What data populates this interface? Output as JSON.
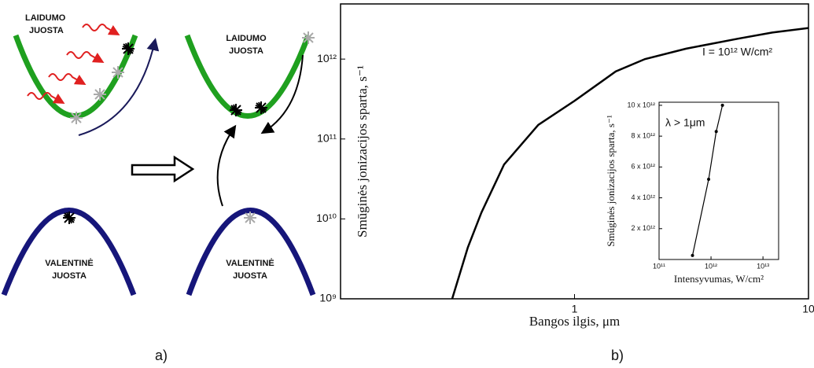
{
  "diagram": {
    "left_conduction": [
      "LAIDUMO",
      "JUOSTA"
    ],
    "right_conduction": [
      "LAIDUMO",
      "JUOSTA"
    ],
    "left_valence": [
      "VALENTINĖ",
      "JUOSTA"
    ],
    "right_valence": [
      "VALENTINĖ",
      "JUOSTA"
    ],
    "panels": [
      "a)",
      "b)"
    ]
  },
  "chart_data": [
    {
      "type": "line",
      "xlabel": "Bangos ilgis, μm",
      "ylabel": "Smūginės jonizacijos sparta, s⁻¹",
      "annotation": "I = 10¹² W/cm²",
      "xscale": "log",
      "yscale": "log",
      "color": "#000000",
      "x": [
        0.3,
        0.35,
        0.4,
        0.5,
        0.7,
        1,
        1.5,
        2,
        3,
        5,
        7,
        10
      ],
      "values": [
        1000000000,
        4400000000,
        12000000000,
        48000000000,
        150000000000,
        300000000000,
        700000000000,
        1000000000000,
        1350000000000,
        1800000000000,
        2150000000000,
        2450000000000
      ],
      "xlim": [
        0.1,
        10
      ],
      "ylim": [
        1000000000,
        4900000000000
      ],
      "xticks": [
        1,
        10
      ],
      "yticks": [
        {
          "value": 1000000000,
          "label": "10⁹"
        },
        {
          "value": 10000000000,
          "label": "10¹⁰"
        },
        {
          "value": 100000000000,
          "label": "10¹¹"
        },
        {
          "value": 1000000000000,
          "label": "10¹²"
        }
      ]
    },
    {
      "type": "line",
      "markers": true,
      "xlabel": "Intensyvumas, W/cm²",
      "ylabel": "Smūginės jonizacijos sparta, s⁻¹",
      "annotation": "λ > 1μm",
      "xscale": "log",
      "yscale": "linear",
      "color": "#000000",
      "x": [
        440000000000,
        900000000000,
        1260000000000,
        1660000000000
      ],
      "values": [
        260000000000,
        5200000000000,
        8300000000000,
        10000000000000
      ],
      "xlim": [
        100000000000,
        20000000000000
      ],
      "ylim": [
        0,
        10200000000000
      ],
      "xticks": [
        {
          "value": 100000000000,
          "label": "10¹¹"
        },
        {
          "value": 1000000000000,
          "label": "10¹²"
        },
        {
          "value": 10000000000000,
          "label": "10¹³"
        }
      ],
      "yticks": [
        {
          "value": 2000000000000,
          "label": "2 x 10¹²"
        },
        {
          "value": 4000000000000,
          "label": "4 x 10¹²"
        },
        {
          "value": 6000000000000,
          "label": "6 x 10¹²"
        },
        {
          "value": 8000000000000,
          "label": "8 x 10¹²"
        },
        {
          "value": 10000000000000,
          "label": "10 x 10¹²"
        }
      ]
    }
  ]
}
